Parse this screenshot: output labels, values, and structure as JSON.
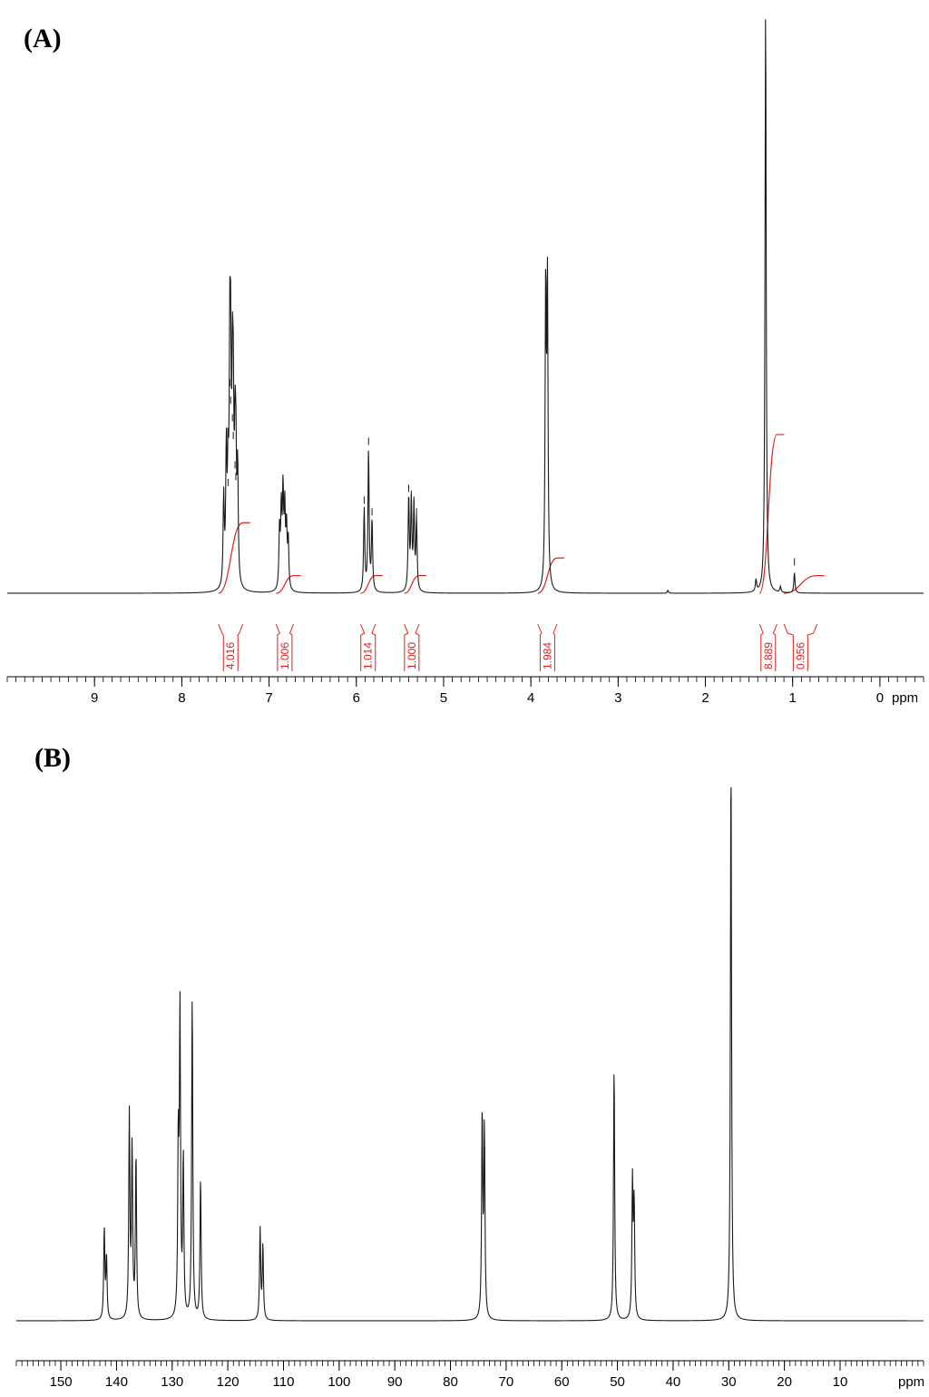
{
  "chart_data": [
    {
      "panel": "(A)",
      "type": "line",
      "xlabel": "ppm",
      "xlim": [
        10.0,
        -0.5
      ],
      "x_ticks": [
        9,
        8,
        7,
        6,
        5,
        4,
        3,
        2,
        1,
        0
      ],
      "x_tick_labels": [
        "9",
        "8",
        "7",
        "6",
        "5",
        "4",
        "3",
        "2",
        "1",
        "0"
      ],
      "y_note": "relative intensity, tallest peak = 1.0",
      "grid": false,
      "peaks": [
        {
          "ppm": 7.52,
          "intensity": 0.15
        },
        {
          "ppm": 7.49,
          "intensity": 0.22
        },
        {
          "ppm": 7.47,
          "intensity": 0.17
        },
        {
          "ppm": 7.45,
          "intensity": 0.34
        },
        {
          "ppm": 7.44,
          "intensity": 0.31
        },
        {
          "ppm": 7.42,
          "intensity": 0.28
        },
        {
          "ppm": 7.41,
          "intensity": 0.25
        },
        {
          "ppm": 7.39,
          "intensity": 0.2
        },
        {
          "ppm": 7.38,
          "intensity": 0.18
        },
        {
          "ppm": 7.36,
          "intensity": 0.19
        },
        {
          "ppm": 6.88,
          "intensity": 0.1
        },
        {
          "ppm": 6.86,
          "intensity": 0.13
        },
        {
          "ppm": 6.84,
          "intensity": 0.16
        },
        {
          "ppm": 6.82,
          "intensity": 0.13
        },
        {
          "ppm": 6.8,
          "intensity": 0.1
        },
        {
          "ppm": 6.78,
          "intensity": 0.08
        },
        {
          "ppm": 5.91,
          "intensity": 0.14
        },
        {
          "ppm": 5.86,
          "intensity": 0.24
        },
        {
          "ppm": 5.82,
          "intensity": 0.12
        },
        {
          "ppm": 5.4,
          "intensity": 0.16
        },
        {
          "ppm": 5.37,
          "intensity": 0.15
        },
        {
          "ppm": 5.34,
          "intensity": 0.14
        },
        {
          "ppm": 5.31,
          "intensity": 0.12
        },
        {
          "ppm": 3.83,
          "intensity": 0.5
        },
        {
          "ppm": 3.81,
          "intensity": 0.51
        },
        {
          "ppm": 1.42,
          "intensity": 0.02
        },
        {
          "ppm": 1.31,
          "intensity": 1.0
        },
        {
          "ppm": 1.14,
          "intensity": 0.01
        },
        {
          "ppm": 0.98,
          "intensity": 0.035
        },
        {
          "ppm": 2.43,
          "intensity": 0.005
        }
      ],
      "integrals": [
        {
          "label": "4.016",
          "from": 7.58,
          "to": 7.3,
          "height": 0.12
        },
        {
          "label": "1.006",
          "from": 6.92,
          "to": 6.72,
          "height": 0.03
        },
        {
          "label": "1.014",
          "from": 5.95,
          "to": 5.78,
          "height": 0.03
        },
        {
          "label": "1.000",
          "from": 5.45,
          "to": 5.28,
          "height": 0.03
        },
        {
          "label": "1.984",
          "from": 3.92,
          "to": 3.7,
          "height": 0.06
        },
        {
          "label": "8.889",
          "from": 1.38,
          "to": 1.18,
          "height": 0.27
        },
        {
          "label": "0.956",
          "from": 1.1,
          "to": 0.72,
          "height": 0.03
        }
      ]
    },
    {
      "panel": "(B)",
      "type": "line",
      "xlabel": "ppm",
      "xlim": [
        158.0,
        -5.0
      ],
      "x_ticks": [
        150,
        140,
        130,
        120,
        110,
        100,
        90,
        80,
        70,
        60,
        50,
        40,
        30,
        20,
        10
      ],
      "x_tick_labels": [
        "150",
        "140",
        "130",
        "120",
        "110",
        "100",
        "90",
        "80",
        "70",
        "60",
        "50",
        "40",
        "30",
        "20",
        "10"
      ],
      "y_note": "relative intensity, tallest peak = 1.0",
      "grid": false,
      "peaks": [
        {
          "ppm": 142.2,
          "intensity": 0.16
        },
        {
          "ppm": 141.8,
          "intensity": 0.11
        },
        {
          "ppm": 137.7,
          "intensity": 0.36
        },
        {
          "ppm": 137.2,
          "intensity": 0.3
        },
        {
          "ppm": 136.5,
          "intensity": 0.29
        },
        {
          "ppm": 128.9,
          "intensity": 0.3
        },
        {
          "ppm": 128.6,
          "intensity": 0.53
        },
        {
          "ppm": 128.0,
          "intensity": 0.28
        },
        {
          "ppm": 126.4,
          "intensity": 0.57
        },
        {
          "ppm": 124.9,
          "intensity": 0.25
        },
        {
          "ppm": 114.2,
          "intensity": 0.16
        },
        {
          "ppm": 113.7,
          "intensity": 0.13
        },
        {
          "ppm": 74.3,
          "intensity": 0.36
        },
        {
          "ppm": 73.9,
          "intensity": 0.33
        },
        {
          "ppm": 50.6,
          "intensity": 0.45
        },
        {
          "ppm": 47.3,
          "intensity": 0.24
        },
        {
          "ppm": 47.0,
          "intensity": 0.2
        },
        {
          "ppm": 29.6,
          "intensity": 1.0
        }
      ]
    }
  ]
}
